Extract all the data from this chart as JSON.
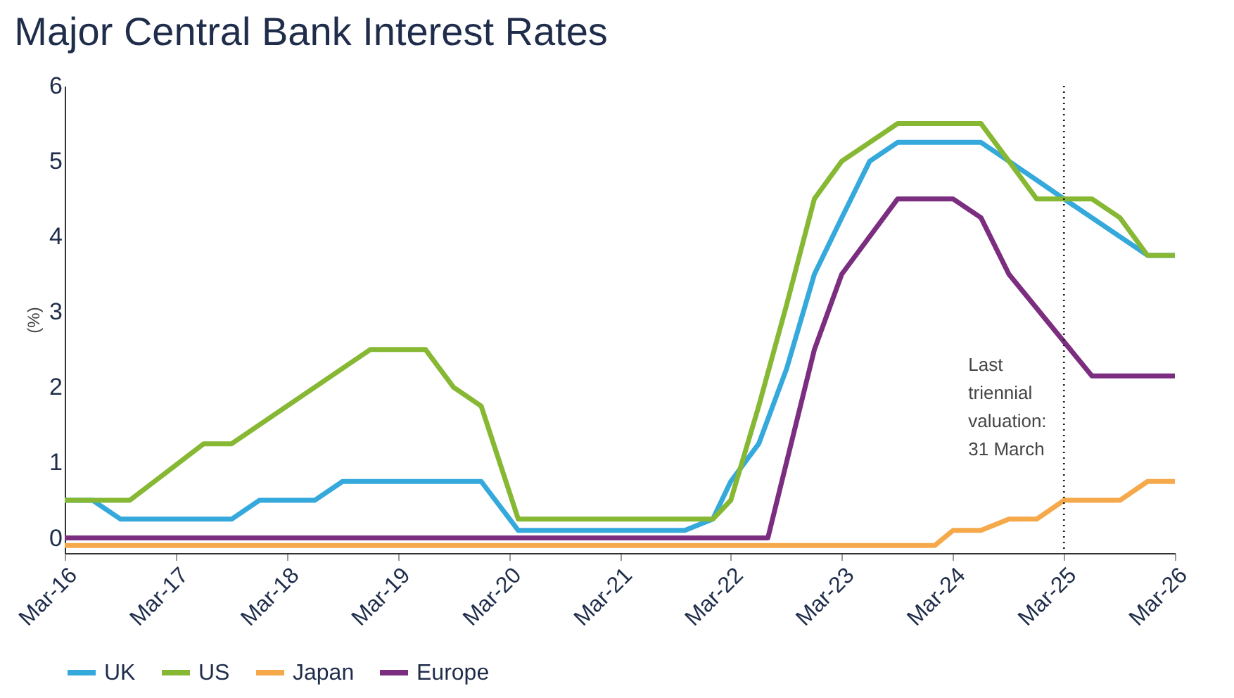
{
  "chart_data": {
    "type": "line",
    "title": "Major Central Bank Interest Rates",
    "ylabel": "(%)",
    "xlim": [
      "2016-03",
      "2026-03"
    ],
    "xticks": [
      {
        "value": "2016-03",
        "label": "Mar-16"
      },
      {
        "value": "2017-03",
        "label": "Mar-17"
      },
      {
        "value": "2018-03",
        "label": "Mar-18"
      },
      {
        "value": "2019-03",
        "label": "Mar-19"
      },
      {
        "value": "2020-03",
        "label": "Mar-20"
      },
      {
        "value": "2021-03",
        "label": "Mar-21"
      },
      {
        "value": "2022-03",
        "label": "Mar-22"
      },
      {
        "value": "2023-03",
        "label": "Mar-23"
      },
      {
        "value": "2024-03",
        "label": "Mar-24"
      },
      {
        "value": "2025-03",
        "label": "Mar-25"
      },
      {
        "value": "2026-03",
        "label": "Mar-26"
      }
    ],
    "ylim": [
      -0.2,
      6
    ],
    "yticks": [
      0,
      1,
      2,
      3,
      4,
      5,
      6
    ],
    "grid": false,
    "legend": "bottom",
    "marker": "none",
    "line_style": "solid",
    "series": [
      {
        "name": "UK",
        "color": "#35a9dc",
        "x": [
          "2016-03",
          "2016-06",
          "2016-09",
          "2017-09",
          "2017-12",
          "2018-06",
          "2018-09",
          "2019-12",
          "2020-04",
          "2021-10",
          "2022-01",
          "2022-03",
          "2022-06",
          "2022-09",
          "2022-12",
          "2023-03",
          "2023-06",
          "2023-09",
          "2024-06",
          "2024-09",
          "2024-12",
          "2025-03",
          "2025-12",
          "2026-03"
        ],
        "values": [
          0.5,
          0.5,
          0.25,
          0.25,
          0.5,
          0.5,
          0.75,
          0.75,
          0.1,
          0.1,
          0.25,
          0.75,
          1.25,
          2.25,
          3.5,
          4.25,
          5.0,
          5.25,
          5.25,
          5.0,
          4.75,
          4.5,
          3.75,
          3.75
        ]
      },
      {
        "name": "US",
        "color": "#86b833",
        "x": [
          "2016-03",
          "2016-10",
          "2017-06",
          "2017-09",
          "2018-12",
          "2019-06",
          "2019-09",
          "2019-12",
          "2020-04",
          "2022-01",
          "2022-03",
          "2022-06",
          "2022-09",
          "2022-12",
          "2023-03",
          "2023-06",
          "2023-09",
          "2024-06",
          "2024-09",
          "2024-12",
          "2025-06",
          "2025-09",
          "2025-12",
          "2026-03"
        ],
        "values": [
          0.5,
          0.5,
          1.25,
          1.25,
          2.5,
          2.5,
          2.0,
          1.75,
          0.25,
          0.25,
          0.5,
          1.75,
          3.1,
          4.5,
          5.0,
          5.25,
          5.5,
          5.5,
          5.0,
          4.5,
          4.5,
          4.25,
          3.75,
          3.75
        ]
      },
      {
        "name": "Japan",
        "color": "#f5a94a",
        "x": [
          "2016-03",
          "2024-01",
          "2024-03",
          "2024-06",
          "2024-09",
          "2024-12",
          "2025-03",
          "2025-09",
          "2025-12",
          "2026-03"
        ],
        "values": [
          -0.1,
          -0.1,
          0.1,
          0.1,
          0.25,
          0.25,
          0.5,
          0.5,
          0.75,
          0.75
        ]
      },
      {
        "name": "Europe",
        "color": "#7b2d7f",
        "x": [
          "2016-03",
          "2022-07",
          "2022-12",
          "2023-03",
          "2023-09",
          "2024-03",
          "2024-06",
          "2024-09",
          "2025-06",
          "2026-03"
        ],
        "values": [
          0,
          0,
          2.5,
          3.5,
          4.5,
          4.5,
          4.25,
          3.5,
          2.15,
          2.15
        ]
      }
    ],
    "ref_lines": [
      {
        "axis": "x",
        "value": "2025-03",
        "label": "Last triennial valuation: 31 March",
        "color": "#222222",
        "line_style": "dotted"
      }
    ]
  }
}
